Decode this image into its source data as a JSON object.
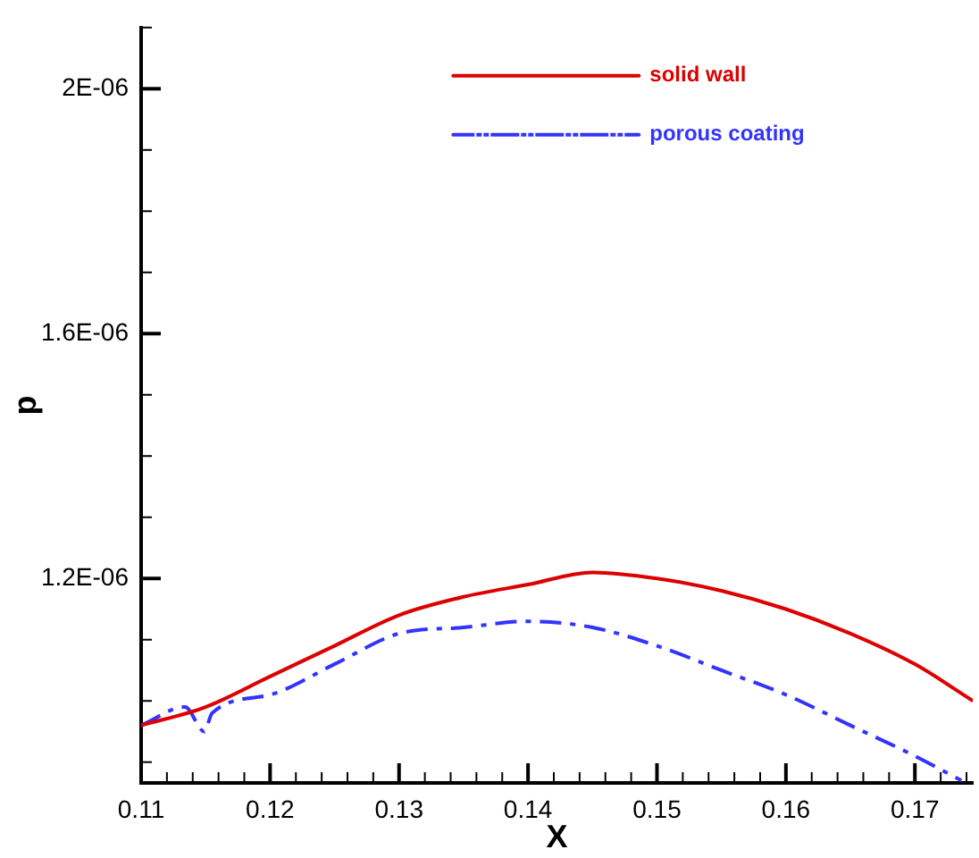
{
  "chart_data": {
    "type": "line",
    "xlabel": "X",
    "ylabel": "p",
    "xlim": [
      0.11,
      0.1745
    ],
    "ylim": [
      8.66e-07,
      2.1e-06
    ],
    "xticks": [
      0.11,
      {
        "value": 0.112,
        "label": null
      },
      {
        "value": 0.114,
        "label": null
      },
      {
        "value": 0.116,
        "label": null
      },
      {
        "value": 0.118,
        "label": null
      },
      0.12,
      {
        "value": 0.122,
        "label": null
      },
      {
        "value": 0.124,
        "label": null
      },
      {
        "value": 0.126,
        "label": null
      },
      {
        "value": 0.128,
        "label": null
      },
      0.13,
      {
        "value": 0.132,
        "label": null
      },
      {
        "value": 0.134,
        "label": null
      },
      {
        "value": 0.136,
        "label": null
      },
      {
        "value": 0.138,
        "label": null
      },
      0.14,
      {
        "value": 0.142,
        "label": null
      },
      {
        "value": 0.144,
        "label": null
      },
      {
        "value": 0.146,
        "label": null
      },
      {
        "value": 0.148,
        "label": null
      },
      0.15,
      {
        "value": 0.152,
        "label": null
      },
      {
        "value": 0.154,
        "label": null
      },
      {
        "value": 0.156,
        "label": null
      },
      {
        "value": 0.158,
        "label": null
      },
      0.16,
      {
        "value": 0.162,
        "label": null
      },
      {
        "value": 0.164,
        "label": null
      },
      {
        "value": 0.166,
        "label": null
      },
      {
        "value": 0.168,
        "label": null
      },
      0.17,
      {
        "value": 0.172,
        "label": null
      },
      {
        "value": 0.174,
        "label": null
      }
    ],
    "yticks": [
      {
        "value": 9e-07,
        "label": null
      },
      {
        "value": 1e-06,
        "label": null
      },
      {
        "value": 1.1e-06,
        "label": null
      },
      {
        "value": 1.2e-06,
        "label": "1.2E-06"
      },
      {
        "value": 1.3e-06,
        "label": null
      },
      {
        "value": 1.4e-06,
        "label": null
      },
      {
        "value": 1.5e-06,
        "label": null
      },
      {
        "value": 1.6e-06,
        "label": "1.6E-06"
      },
      {
        "value": 1.7e-06,
        "label": null
      },
      {
        "value": 1.8e-06,
        "label": null
      },
      {
        "value": 1.9e-06,
        "label": null
      },
      {
        "value": 2e-06,
        "label": "2E-06"
      },
      {
        "value": 2.1e-06,
        "label": null
      }
    ],
    "legend": "top",
    "marker": "none",
    "series": [
      {
        "name": "solid wall",
        "color": "#dd0000",
        "line_style": "solid",
        "x": [
          0.11,
          0.115,
          0.12,
          0.125,
          0.13,
          0.135,
          0.14,
          0.145,
          0.15,
          0.155,
          0.16,
          0.165,
          0.17,
          0.1745
        ],
        "values": [
          9.6e-07,
          9.9e-07,
          1.04e-06,
          1.09e-06,
          1.14e-06,
          1.17e-06,
          1.19e-06,
          1.21e-06,
          1.2e-06,
          1.18e-06,
          1.15e-06,
          1.11e-06,
          1.06e-06,
          1e-06
        ]
      },
      {
        "name": "porous coating",
        "color": "#3333ff",
        "line_style": "dashed",
        "x": [
          0.11,
          0.1134,
          0.1149,
          0.1155,
          0.12,
          0.125,
          0.13,
          0.135,
          0.14,
          0.145,
          0.15,
          0.155,
          0.16,
          0.165,
          0.17,
          0.1736
        ],
        "values": [
          9.6e-07,
          9.9e-07,
          9.5e-07,
          9.8e-07,
          1.01e-06,
          1.06e-06,
          1.11e-06,
          1.12e-06,
          1.13e-06,
          1.12e-06,
          1.09e-06,
          1.05e-06,
          1.01e-06,
          9.6e-07,
          9.1e-07,
          8.7e-07
        ]
      }
    ]
  }
}
